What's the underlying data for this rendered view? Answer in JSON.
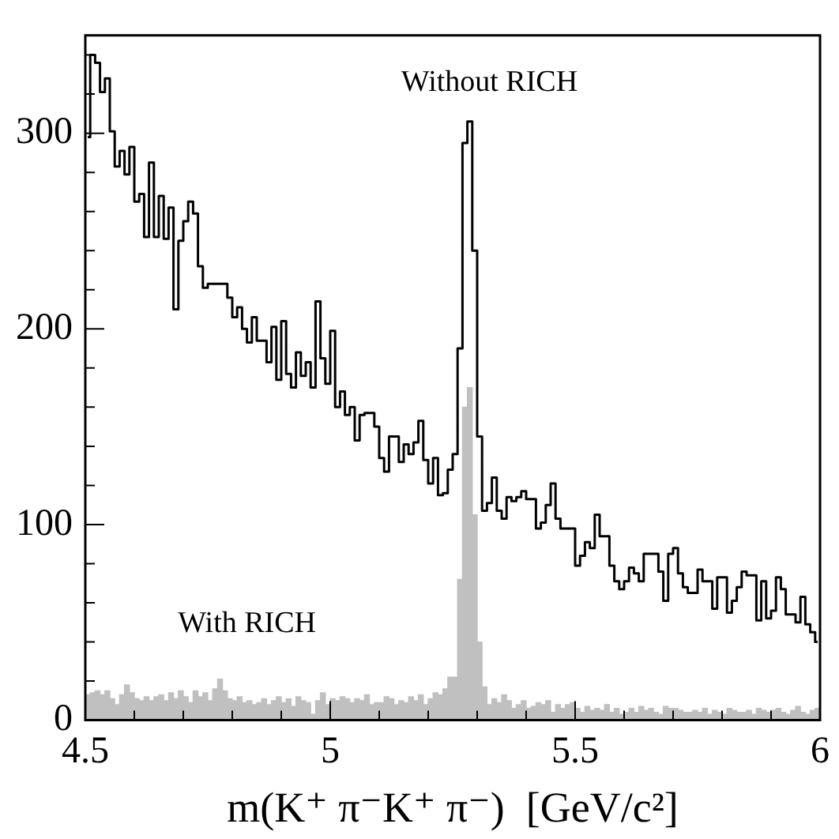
{
  "chart_data": {
    "type": "histogram",
    "xlabel": "m(K⁺ π⁻K⁺ π⁻)  [GeV/c²]",
    "bins": [
      4.5,
      4.51,
      4.52,
      4.53,
      4.54,
      4.55,
      4.56,
      4.57,
      4.58,
      4.59,
      4.6,
      4.61,
      4.62,
      4.63,
      4.64,
      4.65,
      4.66,
      4.67,
      4.68,
      4.69,
      4.7,
      4.71,
      4.72,
      4.73,
      4.74,
      4.75,
      4.76,
      4.77,
      4.78,
      4.79,
      4.8,
      4.81,
      4.82,
      4.83,
      4.84,
      4.85,
      4.86,
      4.87,
      4.88,
      4.89,
      4.9,
      4.91,
      4.92,
      4.93,
      4.94,
      4.95,
      4.96,
      4.97,
      4.98,
      4.99,
      5.0,
      5.01,
      5.02,
      5.03,
      5.04,
      5.05,
      5.06,
      5.07,
      5.08,
      5.09,
      5.1,
      5.11,
      5.12,
      5.13,
      5.14,
      5.15,
      5.16,
      5.17,
      5.18,
      5.19,
      5.2,
      5.21,
      5.22,
      5.23,
      5.24,
      5.25,
      5.26,
      5.27,
      5.28,
      5.29,
      5.3,
      5.31,
      5.32,
      5.33,
      5.34,
      5.35,
      5.36,
      5.37,
      5.38,
      5.39,
      5.4,
      5.41,
      5.42,
      5.43,
      5.44,
      5.45,
      5.46,
      5.47,
      5.48,
      5.49,
      5.5,
      5.51,
      5.52,
      5.53,
      5.54,
      5.55,
      5.56,
      5.57,
      5.58,
      5.59,
      5.6,
      5.61,
      5.62,
      5.63,
      5.64,
      5.65,
      5.66,
      5.67,
      5.68,
      5.69,
      5.7,
      5.71,
      5.72,
      5.73,
      5.74,
      5.75,
      5.76,
      5.77,
      5.78,
      5.79,
      5.8,
      5.81,
      5.82,
      5.83,
      5.84,
      5.85,
      5.86,
      5.87,
      5.88,
      5.89,
      5.9,
      5.91,
      5.92,
      5.93,
      5.94,
      5.95,
      5.96,
      5.97,
      5.98,
      5.99,
      6.0
    ],
    "series": [
      {
        "name": "With RICH",
        "color": "#c0c0c0",
        "values": [
          13,
          14,
          15,
          13,
          15,
          11,
          8,
          13,
          18,
          14,
          11,
          10,
          12,
          10,
          12,
          13,
          10,
          14,
          11,
          15,
          12,
          9,
          15,
          12,
          14,
          10,
          16,
          21,
          15,
          11,
          10,
          12,
          9,
          10,
          8,
          9,
          11,
          8,
          10,
          12,
          9,
          11,
          7,
          12,
          10,
          9,
          3,
          10,
          14,
          8,
          11,
          10,
          12,
          11,
          9,
          11,
          10,
          13,
          8,
          9,
          9,
          12,
          11,
          8,
          10,
          9,
          12,
          10,
          13,
          8,
          11,
          14,
          13,
          16,
          22,
          22,
          72,
          160,
          170,
          105,
          40,
          17,
          8,
          11,
          9,
          13,
          10,
          6,
          8,
          10,
          6,
          7,
          9,
          8,
          10,
          4,
          8,
          6,
          8,
          9,
          6,
          4,
          7,
          5,
          6,
          5,
          8,
          4,
          6,
          3,
          4,
          6,
          4,
          7,
          5,
          6,
          4,
          3,
          7,
          6,
          6,
          5,
          4,
          4,
          5,
          4,
          6,
          3,
          5,
          4,
          3,
          6,
          5,
          4,
          4,
          5,
          3,
          6,
          5,
          4,
          5,
          6,
          4,
          3,
          5,
          7,
          4,
          3,
          5,
          6
        ]
      },
      {
        "name": "Without RICH",
        "type": "step",
        "color": "#000000",
        "x": [
          4.505,
          4.515,
          4.525,
          4.535,
          4.545,
          4.555,
          4.565,
          4.575,
          4.585,
          4.595,
          4.605,
          4.615,
          4.625,
          4.635,
          4.645,
          4.655,
          4.665,
          4.675,
          4.685,
          4.695,
          4.705,
          4.715,
          4.725,
          4.735,
          4.745,
          4.755,
          4.765,
          4.775,
          4.785,
          4.795,
          4.805,
          4.815,
          4.825,
          4.835,
          4.845,
          4.855,
          4.865,
          4.875,
          4.885,
          4.895,
          4.905,
          4.915,
          4.925,
          4.935,
          4.945,
          4.955,
          4.965,
          4.975,
          4.985,
          4.995,
          5.005,
          5.015,
          5.025,
          5.035,
          5.045,
          5.055,
          5.065,
          5.075,
          5.085,
          5.095,
          5.105,
          5.115,
          5.125,
          5.135,
          5.145,
          5.155,
          5.165,
          5.175,
          5.185,
          5.195,
          5.205,
          5.215,
          5.225,
          5.235,
          5.245,
          5.255,
          5.265,
          5.275,
          5.285,
          5.295,
          5.305,
          5.315,
          5.325,
          5.335,
          5.345,
          5.355,
          5.365,
          5.375,
          5.385,
          5.395,
          5.405,
          5.415,
          5.425,
          5.435,
          5.445,
          5.455,
          5.465,
          5.475,
          5.485,
          5.495,
          5.505,
          5.515,
          5.525,
          5.535,
          5.545,
          5.555,
          5.565,
          5.575,
          5.585,
          5.595,
          5.605,
          5.615,
          5.625,
          5.635,
          5.645,
          5.655,
          5.665,
          5.675,
          5.685,
          5.695,
          5.705,
          5.715,
          5.725,
          5.735,
          5.745,
          5.755,
          5.765,
          5.775,
          5.785,
          5.795,
          5.805,
          5.815,
          5.825,
          5.835,
          5.845,
          5.855,
          5.865,
          5.875,
          5.885,
          5.895,
          5.905,
          5.915,
          5.925,
          5.935,
          5.945,
          5.955,
          5.965,
          5.975,
          5.985,
          5.995
        ],
        "values": [
          298,
          340,
          336,
          321,
          328,
          301,
          283,
          291,
          279,
          293,
          265,
          269,
          247,
          285,
          247,
          268,
          246,
          262,
          210,
          245,
          255,
          265,
          259,
          232,
          221,
          223,
          223,
          223,
          223,
          216,
          206,
          211,
          200,
          193,
          206,
          194,
          194,
          183,
          201,
          174,
          204,
          177,
          170,
          188,
          176,
          183,
          170,
          214,
          185,
          172,
          199,
          160,
          168,
          156,
          160,
          143,
          156,
          157,
          157,
          150,
          134,
          127,
          145,
          145,
          132,
          141,
          136,
          142,
          153,
          133,
          121,
          134,
          115,
          116,
          128,
          136,
          190,
          295,
          306,
          240,
          145,
          107,
          111,
          124,
          107,
          103,
          114,
          112,
          114,
          117,
          113,
          113,
          98,
          101,
          110,
          121,
          103,
          98,
          98,
          98,
          79,
          84,
          91,
          88,
          105,
          94,
          94,
          79,
          71,
          67,
          71,
          78,
          75,
          71,
          85,
          85,
          85,
          76,
          61,
          85,
          88,
          75,
          68,
          65,
          65,
          77,
          71,
          71,
          57,
          73,
          73,
          55,
          61,
          68,
          76,
          74,
          74,
          51,
          71,
          52,
          56,
          73,
          67,
          54,
          54,
          50,
          63,
          49,
          45,
          40
        ]
      }
    ],
    "xlim": [
      4.5,
      6
    ],
    "xticks": [
      4.5,
      {
        "value": 4.6,
        "label": null
      },
      {
        "value": 4.7,
        "label": null
      },
      {
        "value": 4.8,
        "label": null
      },
      {
        "value": 4.9,
        "label": null
      },
      5,
      {
        "value": 5.1,
        "label": null
      },
      {
        "value": 5.2,
        "label": null
      },
      {
        "value": 5.3,
        "label": null
      },
      {
        "value": 5.4,
        "label": null
      },
      5.5,
      {
        "value": 5.6,
        "label": null
      },
      {
        "value": 5.7,
        "label": null
      },
      {
        "value": 5.8,
        "label": null
      },
      {
        "value": 5.9,
        "label": null
      },
      6
    ],
    "ylim": [
      0,
      350
    ],
    "yticks": [
      0,
      {
        "value": 20,
        "label": null
      },
      {
        "value": 40,
        "label": null
      },
      {
        "value": 60,
        "label": null
      },
      {
        "value": 80,
        "label": null
      },
      100,
      {
        "value": 120,
        "label": null
      },
      {
        "value": 140,
        "label": null
      },
      {
        "value": 160,
        "label": null
      },
      {
        "value": 180,
        "label": null
      },
      200,
      {
        "value": 220,
        "label": null
      },
      {
        "value": 240,
        "label": null
      },
      {
        "value": 260,
        "label": null
      },
      {
        "value": 280,
        "label": null
      },
      300,
      {
        "value": 320,
        "label": null
      },
      {
        "value": 340,
        "label": null
      }
    ]
  }
}
